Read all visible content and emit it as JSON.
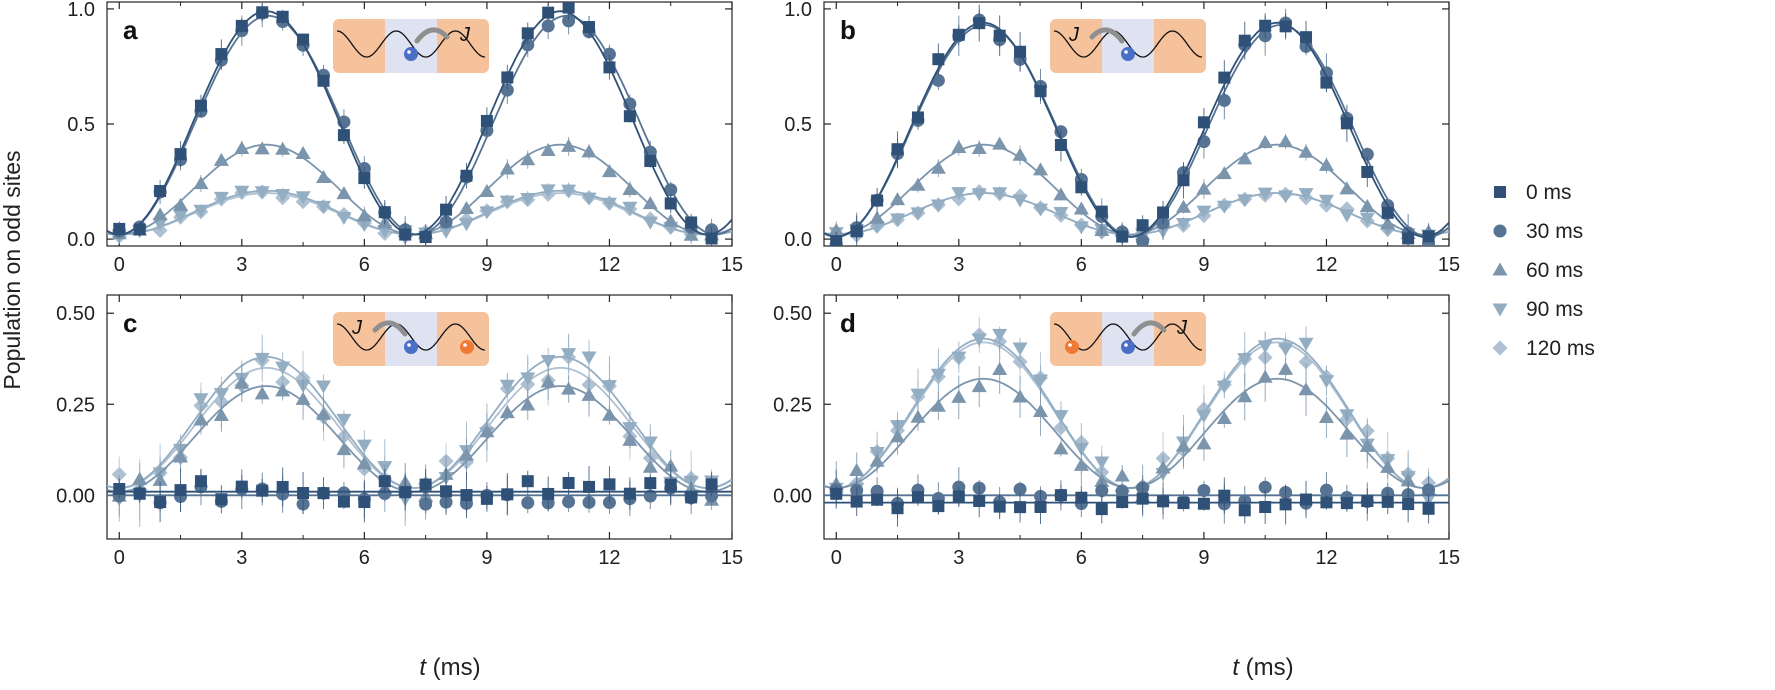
{
  "figure": {
    "ylabel": "Population on odd sites",
    "xlabel_var": "t",
    "xlabel_unit": " (ms)",
    "coupling_symbol": "J"
  },
  "colors": {
    "s0": "#2f5177",
    "s30": "#577393",
    "s60": "#7b95ad",
    "s90": "#93adc3",
    "s120": "#aec0d2",
    "reservoir": "#f6c29c",
    "center": "#dfe2f1",
    "atom_blue": "#4a6fc6",
    "atom_orange": "#ef7a35",
    "arrow": "#8f8f8f"
  },
  "legend": [
    {
      "label": "0 ms",
      "marker": "square",
      "color": "#2f5177"
    },
    {
      "label": "30 ms",
      "marker": "circle",
      "color": "#577393"
    },
    {
      "label": "60 ms",
      "marker": "tri-up",
      "color": "#7b95ad"
    },
    {
      "label": "90 ms",
      "marker": "tri-down",
      "color": "#93adc3"
    },
    {
      "label": "120 ms",
      "marker": "diamond",
      "color": "#aec0d2"
    }
  ],
  "chart_data": [
    {
      "panel": "a",
      "type": "scatter",
      "xlim": [
        -0.3,
        15
      ],
      "ylim": [
        -0.03,
        1.03
      ],
      "xticks": [
        "0",
        "3",
        "6",
        "9",
        "12",
        "15"
      ],
      "yticks": [
        {
          "value": 0.0,
          "label": "0.0"
        },
        {
          "value": 0.5,
          "label": "0.5"
        },
        {
          "value": 1.0,
          "label": "1.0"
        }
      ],
      "inset": "center-right",
      "series": [
        {
          "name": "0 ms",
          "marker": "square",
          "fit": {
            "offset": 0.02,
            "amplitude": 0.97,
            "period": 7.2,
            "phase": 0
          },
          "noise": 0.03,
          "seed": 11
        },
        {
          "name": "30 ms",
          "marker": "circle",
          "fit": {
            "offset": 0.02,
            "amplitude": 0.95,
            "period": 7.3,
            "phase": 0
          },
          "noise": 0.03,
          "seed": 12
        },
        {
          "name": "60 ms",
          "marker": "tri-up",
          "fit": {
            "offset": 0.02,
            "amplitude": 0.39,
            "period": 7.2,
            "phase": 0
          },
          "noise": 0.02,
          "seed": 13
        },
        {
          "name": "90 ms",
          "marker": "tri-down",
          "fit": {
            "offset": 0.02,
            "amplitude": 0.19,
            "period": 7.2,
            "phase": 0
          },
          "noise": 0.015,
          "seed": 14
        },
        {
          "name": "120 ms",
          "marker": "diamond",
          "fit": {
            "offset": 0.02,
            "amplitude": 0.18,
            "period": 7.2,
            "phase": 0
          },
          "noise": 0.015,
          "seed": 15
        }
      ]
    },
    {
      "panel": "b",
      "type": "scatter",
      "xlim": [
        -0.3,
        15
      ],
      "ylim": [
        -0.03,
        1.03
      ],
      "xticks": [
        "0",
        "3",
        "6",
        "9",
        "12",
        "15"
      ],
      "yticks": [
        {
          "value": 0.0,
          "label": "0.0"
        },
        {
          "value": 0.5,
          "label": "0.5"
        },
        {
          "value": 1.0,
          "label": "1.0"
        }
      ],
      "inset": "center-left",
      "series": [
        {
          "name": "0 ms",
          "marker": "square",
          "fit": {
            "offset": 0.01,
            "amplitude": 0.93,
            "period": 7.2,
            "phase": 0
          },
          "noise": 0.04,
          "seed": 21
        },
        {
          "name": "30 ms",
          "marker": "circle",
          "fit": {
            "offset": 0.01,
            "amplitude": 0.92,
            "period": 7.25,
            "phase": 0
          },
          "noise": 0.04,
          "seed": 22
        },
        {
          "name": "60 ms",
          "marker": "tri-up",
          "fit": {
            "offset": 0.02,
            "amplitude": 0.39,
            "period": 7.2,
            "phase": 0
          },
          "noise": 0.02,
          "seed": 23
        },
        {
          "name": "90 ms",
          "marker": "tri-down",
          "fit": {
            "offset": 0.02,
            "amplitude": 0.18,
            "period": 7.2,
            "phase": 0
          },
          "noise": 0.015,
          "seed": 24
        },
        {
          "name": "120 ms",
          "marker": "diamond",
          "fit": {
            "offset": 0.02,
            "amplitude": 0.18,
            "period": 7.2,
            "phase": 0
          },
          "noise": 0.015,
          "seed": 25
        }
      ]
    },
    {
      "panel": "c",
      "type": "scatter",
      "xlim": [
        -0.3,
        15
      ],
      "ylim": [
        -0.12,
        0.55
      ],
      "xticks": [
        "0",
        "3",
        "6",
        "9",
        "12",
        "15"
      ],
      "yticks": [
        {
          "value": 0.0,
          "label": "0.00"
        },
        {
          "value": 0.25,
          "label": "0.25"
        },
        {
          "value": 0.5,
          "label": "0.50"
        }
      ],
      "inset": "center-left-orange-right",
      "series": [
        {
          "name": "0 ms",
          "marker": "square",
          "fit": {
            "offset": 0.01,
            "amplitude": 0.0,
            "period": 7.2,
            "phase": 0
          },
          "noise": 0.03,
          "seed": 31
        },
        {
          "name": "30 ms",
          "marker": "circle",
          "fit": {
            "offset": 0.0,
            "amplitude": 0.0,
            "period": 7.2,
            "phase": 0
          },
          "noise": 0.025,
          "seed": 32
        },
        {
          "name": "60 ms",
          "marker": "tri-up",
          "fit": {
            "offset": 0.01,
            "amplitude": 0.29,
            "period": 7.2,
            "phase": 0
          },
          "noise": 0.03,
          "seed": 33
        },
        {
          "name": "90 ms",
          "marker": "tri-down",
          "fit": {
            "offset": 0.02,
            "amplitude": 0.36,
            "period": 7.2,
            "phase": 0
          },
          "noise": 0.04,
          "seed": 34
        },
        {
          "name": "120 ms",
          "marker": "diamond",
          "fit": {
            "offset": 0.02,
            "amplitude": 0.33,
            "period": 7.2,
            "phase": 0
          },
          "noise": 0.04,
          "seed": 35
        }
      ]
    },
    {
      "panel": "d",
      "type": "scatter",
      "xlim": [
        -0.3,
        15
      ],
      "ylim": [
        -0.12,
        0.55
      ],
      "xticks": [
        "0",
        "3",
        "6",
        "9",
        "12",
        "15"
      ],
      "yticks": [
        {
          "value": 0.0,
          "label": "0.00"
        },
        {
          "value": 0.25,
          "label": "0.25"
        },
        {
          "value": 0.5,
          "label": "0.50"
        }
      ],
      "inset": "orange-left-center-right",
      "series": [
        {
          "name": "0 ms",
          "marker": "square",
          "fit": {
            "offset": -0.02,
            "amplitude": 0.0,
            "period": 7.2,
            "phase": 0
          },
          "noise": 0.025,
          "seed": 41
        },
        {
          "name": "30 ms",
          "marker": "circle",
          "fit": {
            "offset": 0.0,
            "amplitude": 0.0,
            "period": 7.2,
            "phase": 0
          },
          "noise": 0.025,
          "seed": 42
        },
        {
          "name": "60 ms",
          "marker": "tri-up",
          "fit": {
            "offset": 0.02,
            "amplitude": 0.3,
            "period": 7.2,
            "phase": 0
          },
          "noise": 0.035,
          "seed": 43
        },
        {
          "name": "90 ms",
          "marker": "tri-down",
          "fit": {
            "offset": 0.02,
            "amplitude": 0.41,
            "period": 7.2,
            "phase": 0
          },
          "noise": 0.035,
          "seed": 44
        },
        {
          "name": "120 ms",
          "marker": "diamond",
          "fit": {
            "offset": 0.02,
            "amplitude": 0.4,
            "period": 7.2,
            "phase": 0
          },
          "noise": 0.035,
          "seed": 45
        }
      ]
    }
  ]
}
